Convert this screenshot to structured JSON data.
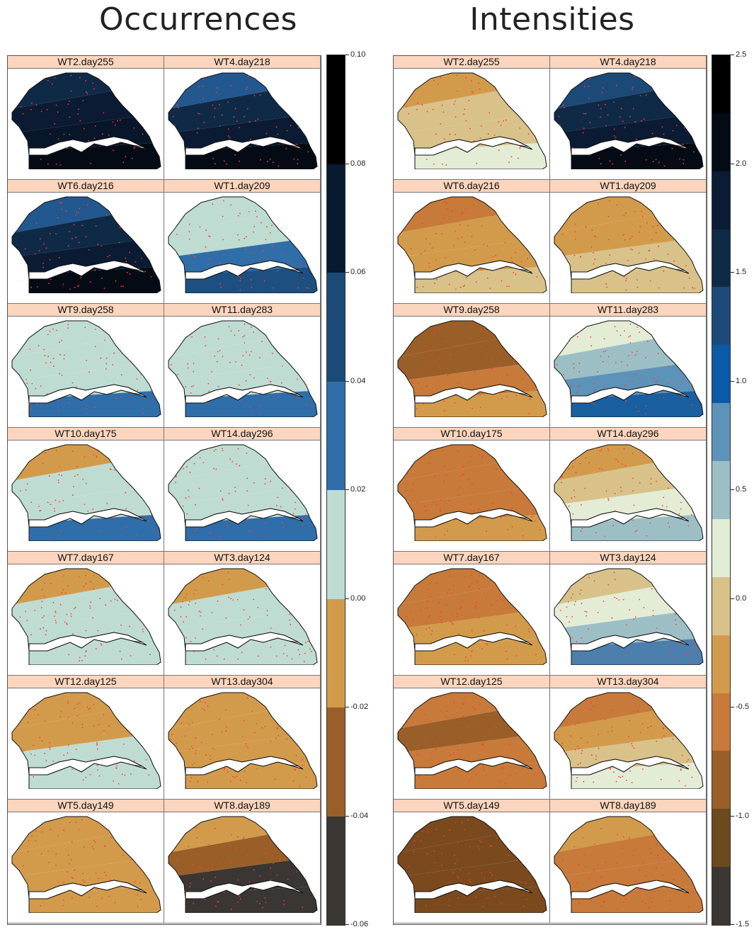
{
  "titles": {
    "occurrences": "Occurrences",
    "intensities": "Intensities"
  },
  "occurrences": {
    "panels": [
      {
        "label": "WT2.day255",
        "bands": [
          "#0f2a47",
          "#0a1b33",
          "#081629",
          "#050b15"
        ]
      },
      {
        "label": "WT4.day218",
        "bands": [
          "#22588f",
          "#0f2a47",
          "#0a1b33",
          "#050b15"
        ]
      },
      {
        "label": "WT6.day216",
        "bands": [
          "#22588f",
          "#0f2a47",
          "#0a1b33",
          "#050b15"
        ]
      },
      {
        "label": "WT1.day209",
        "bands": [
          "#bfdcd3",
          "#bfdcd3",
          "#2f6ea8",
          "#1d4f80"
        ]
      },
      {
        "label": "WT9.day258",
        "bands": [
          "#bfdcd3",
          "#bfdcd3",
          "#bfdcd3",
          "#2f6ea8"
        ]
      },
      {
        "label": "WT11.day283",
        "bands": [
          "#bfdcd3",
          "#bfdcd3",
          "#bfdcd3",
          "#2f6ea8"
        ]
      },
      {
        "label": "WT10.day175",
        "bands": [
          "#d29b4c",
          "#bfdcd3",
          "#bfdcd3",
          "#2f6ea8"
        ]
      },
      {
        "label": "WT14.day296",
        "bands": [
          "#bfdcd3",
          "#bfdcd3",
          "#bfdcd3",
          "#2f6ea8"
        ]
      },
      {
        "label": "WT7.day167",
        "bands": [
          "#d29b4c",
          "#bfdcd3",
          "#bfdcd3",
          "#bfdcd3"
        ]
      },
      {
        "label": "WT3.day124",
        "bands": [
          "#d29b4c",
          "#bfdcd3",
          "#bfdcd3",
          "#bfdcd3"
        ]
      },
      {
        "label": "WT12.day125",
        "bands": [
          "#d29b4c",
          "#d29b4c",
          "#bfdcd3",
          "#bfdcd3"
        ]
      },
      {
        "label": "WT13.day304",
        "bands": [
          "#d29b4c",
          "#d29b4c",
          "#d29b4c",
          "#d29b4c"
        ]
      },
      {
        "label": "WT5.day149",
        "bands": [
          "#d29b4c",
          "#d29b4c",
          "#d29b4c",
          "#d29b4c"
        ]
      },
      {
        "label": "WT8.day189",
        "bands": [
          "#d29b4c",
          "#9a5f28",
          "#3a3634",
          "#3a3634"
        ]
      }
    ],
    "legend": {
      "colors": [
        "#000000",
        "#081a30",
        "#1c4a78",
        "#2f6ea8",
        "#bfdcd3",
        "#d29b4c",
        "#9a5f28",
        "#3a3634"
      ],
      "ticks": [
        "0.10",
        "0.08",
        "0.06",
        "0.04",
        "0.02",
        "0.00",
        "-0.02",
        "-0.04",
        "-0.06"
      ]
    }
  },
  "intensities": {
    "panels": [
      {
        "label": "WT2.day255",
        "bands": [
          "#d29b4c",
          "#d8c289",
          "#d8c289",
          "#e3ecd5"
        ]
      },
      {
        "label": "WT4.day218",
        "bands": [
          "#1c4a78",
          "#0f2a47",
          "#0a1b33",
          "#050b15"
        ]
      },
      {
        "label": "WT6.day216",
        "bands": [
          "#c87a3a",
          "#d29b4c",
          "#d29b4c",
          "#d8c289"
        ]
      },
      {
        "label": "WT1.day209",
        "bands": [
          "#d29b4c",
          "#d29b4c",
          "#d8c289",
          "#d8c289"
        ]
      },
      {
        "label": "WT9.day258",
        "bands": [
          "#9a5f28",
          "#9a5f28",
          "#c87a3a",
          "#d29b4c"
        ]
      },
      {
        "label": "WT11.day283",
        "bands": [
          "#e3ecd5",
          "#9cbfc6",
          "#5d93b8",
          "#1a5fa0"
        ]
      },
      {
        "label": "WT10.day175",
        "bands": [
          "#c87a3a",
          "#c87a3a",
          "#c87a3a",
          "#d29b4c"
        ]
      },
      {
        "label": "WT14.day296",
        "bands": [
          "#d29b4c",
          "#d8c289",
          "#e3ecd5",
          "#9cbfc6"
        ]
      },
      {
        "label": "WT7.day167",
        "bands": [
          "#c87a3a",
          "#c87a3a",
          "#d29b4c",
          "#d29b4c"
        ]
      },
      {
        "label": "WT3.day124",
        "bands": [
          "#d8c289",
          "#e3ecd5",
          "#9cbfc6",
          "#4a7fae"
        ]
      },
      {
        "label": "WT12.day125",
        "bands": [
          "#c87a3a",
          "#9a5f28",
          "#c87a3a",
          "#c87a3a"
        ]
      },
      {
        "label": "WT13.day304",
        "bands": [
          "#c87a3a",
          "#d29b4c",
          "#d8c289",
          "#e3ecd5"
        ]
      },
      {
        "label": "WT5.day149",
        "bands": [
          "#7a4a1e",
          "#7a4a1e",
          "#7a4a1e",
          "#7a4a1e"
        ]
      },
      {
        "label": "WT8.day189",
        "bands": [
          "#d29b4c",
          "#c87a3a",
          "#c87a3a",
          "#c87a3a"
        ]
      }
    ],
    "legend": {
      "colors": [
        "#000000",
        "#050b15",
        "#0a1b33",
        "#0f2a47",
        "#1c4a78",
        "#0a5aa6",
        "#5d93b8",
        "#9cbfc6",
        "#e3ecd5",
        "#d8c289",
        "#d29b4c",
        "#c87a3a",
        "#9a5f28",
        "#6b4a1e",
        "#3a3634"
      ],
      "ticks": [
        "2.5",
        "2.0",
        "1.5",
        "1.0",
        "0.5",
        "0.0",
        "-0.5",
        "-1.0",
        "-1.5"
      ]
    }
  }
}
